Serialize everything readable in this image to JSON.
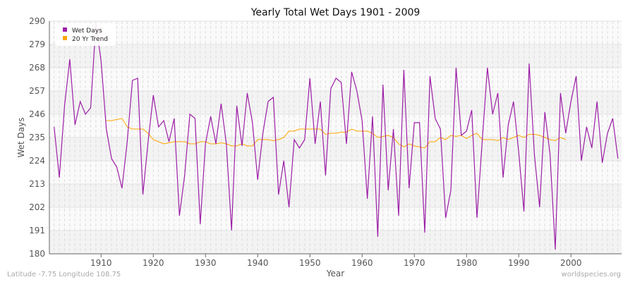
{
  "chart_data": {
    "type": "line",
    "title": "Yearly Total Wet Days 1901 - 2009",
    "xlabel": "Year",
    "ylabel": "Wet Days",
    "xlim": [
      1901,
      2009
    ],
    "ylim": [
      180,
      290
    ],
    "yticks": [
      180,
      191,
      202,
      213,
      224,
      235,
      246,
      257,
      268,
      279,
      290
    ],
    "xticks": [
      1910,
      1920,
      1930,
      1940,
      1950,
      1960,
      1970,
      1980,
      1990,
      2000
    ],
    "grid": true,
    "legend_position": "top-left",
    "series": [
      {
        "name": "Wet Days",
        "color": "#9b1ea6",
        "start_year": 1901,
        "values": [
          240,
          216,
          250,
          272,
          241,
          252,
          246,
          249,
          289,
          271,
          239,
          225,
          221,
          211,
          233,
          262,
          263,
          208,
          233,
          255,
          240,
          243,
          233,
          244,
          198,
          217,
          246,
          244,
          194,
          232,
          245,
          232,
          251,
          232,
          191,
          250,
          231,
          256,
          242,
          215,
          237,
          252,
          254,
          208,
          224,
          202,
          234,
          230,
          234,
          263,
          232,
          252,
          217,
          258,
          263,
          261,
          232,
          266,
          257,
          243,
          206,
          245,
          188,
          260,
          210,
          239,
          198,
          267,
          211,
          242,
          242,
          190,
          264,
          244,
          239,
          197,
          210,
          268,
          236,
          238,
          248,
          197,
          233,
          268,
          246,
          256,
          216,
          241,
          252,
          228,
          200,
          270,
          227,
          202,
          247,
          227,
          182,
          256,
          237,
          252,
          264,
          224,
          240,
          230,
          252,
          223,
          237,
          244,
          225
        ]
      },
      {
        "name": "20 Yr Trend",
        "color": "#ffa500",
        "start_year": 1911,
        "values": [
          243,
          243,
          243.5,
          244,
          240,
          239,
          239,
          239,
          237,
          234,
          233,
          232,
          232.5,
          233,
          233,
          233,
          232,
          232,
          233,
          233,
          232,
          232,
          232.5,
          232,
          231,
          231,
          232,
          231,
          231,
          234,
          234,
          234,
          233.5,
          234,
          235,
          238,
          238,
          239,
          239,
          239,
          239,
          239,
          236.5,
          237,
          237,
          237.5,
          237.5,
          239,
          238,
          238,
          238,
          237,
          235,
          235.5,
          236,
          235,
          232,
          230.5,
          232,
          231,
          230.5,
          230,
          233,
          233,
          235,
          234,
          236,
          235.5,
          236,
          234.5,
          236,
          237,
          234,
          234,
          234,
          233.5,
          235,
          234,
          235,
          236,
          235,
          236.5,
          236.5,
          236,
          235,
          234,
          233.5,
          235,
          234
        ]
      }
    ]
  },
  "footer": {
    "location": "Latitude -7.75 Longitude 108.75",
    "credit": "worldspecies.org"
  }
}
